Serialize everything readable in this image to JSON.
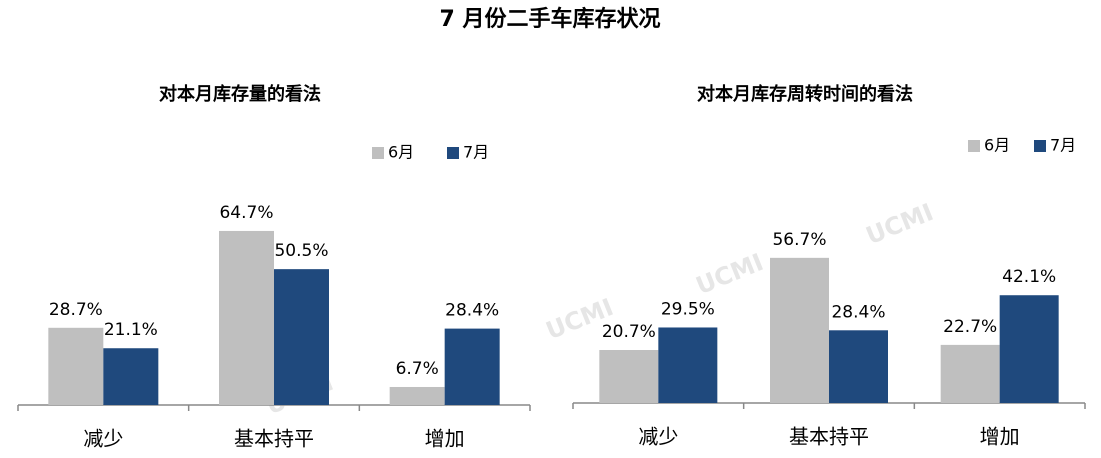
{
  "title": "7 月份二手车库存状况",
  "watermark": "UCMI",
  "chart_data": [
    {
      "type": "bar",
      "title": "对本月库存量的看法",
      "categories": [
        "减少",
        "基本持平",
        "增加"
      ],
      "series": [
        {
          "name": "6月",
          "color": "#bfbfbf",
          "values": [
            28.7,
            64.7,
            6.7
          ],
          "value_labels": [
            "28.7%",
            "64.7%",
            "6.7%"
          ]
        },
        {
          "name": "7月",
          "color": "#1f497d",
          "values": [
            21.1,
            50.5,
            28.4
          ],
          "value_labels": [
            "21.1%",
            "50.5%",
            "28.4%"
          ]
        }
      ]
    },
    {
      "type": "bar",
      "title": "对本月库存周转时间的看法",
      "categories": [
        "减少",
        "基本持平",
        "增加"
      ],
      "series": [
        {
          "name": "6月",
          "color": "#bfbfbf",
          "values": [
            20.7,
            56.7,
            22.7
          ],
          "value_labels": [
            "20.7%",
            "56.7%",
            "22.7%"
          ]
        },
        {
          "name": "7月",
          "color": "#1f497d",
          "values": [
            29.5,
            28.4,
            42.1
          ],
          "value_labels": [
            "29.5%",
            "28.4%",
            "42.1%"
          ]
        }
      ]
    }
  ]
}
